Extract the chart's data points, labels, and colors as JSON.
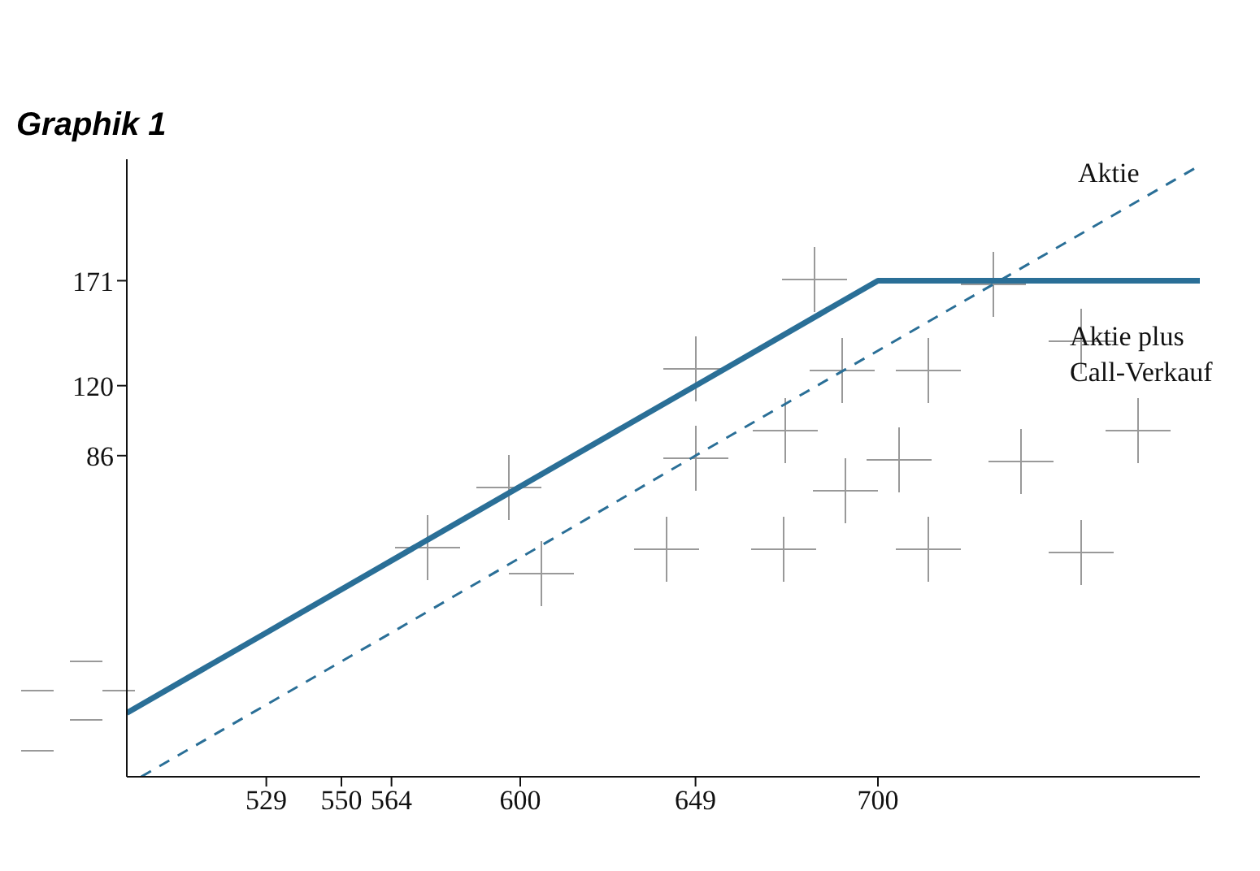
{
  "chart_data": {
    "type": "line",
    "title": "Graphik 1",
    "series": [
      {
        "name": "Aktie plus Call-Verkauf",
        "color": "#2a6f97",
        "x": [
          490,
          529,
          649,
          700,
          790
        ],
        "values": [
          -39,
          0,
          120,
          171,
          171
        ],
        "line_style": "solid"
      },
      {
        "name": "Aktie",
        "color": "#2a6f97",
        "x": [
          494,
          564,
          649,
          790
        ],
        "values": [
          -70,
          0,
          86,
          227
        ],
        "line_style": "dashed"
      }
    ],
    "xlim": [
      490,
      790
    ],
    "ylim": [
      -70,
      230
    ],
    "xticks": [
      529,
      550,
      564,
      600,
      649,
      700
    ],
    "yticks": [
      86,
      120,
      171
    ],
    "marker": "none"
  }
}
